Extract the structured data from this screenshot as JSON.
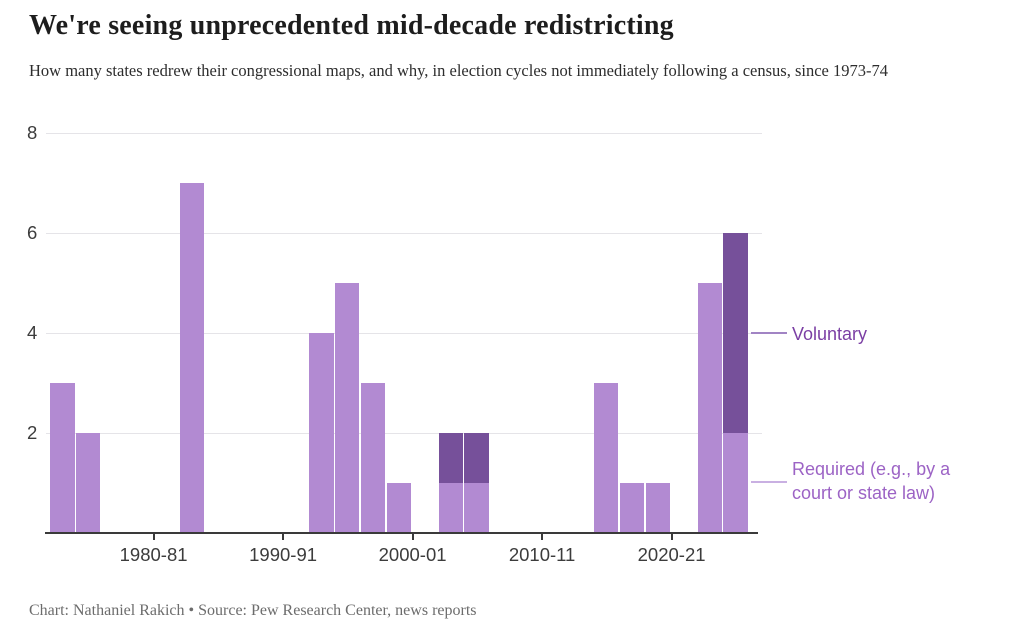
{
  "page": {
    "title": "We're seeing unprecedented mid-decade redistricting",
    "subtitle": "How many states redrew their congressional maps, and why, in election cycles not immediately following a census, since 1973-74",
    "credit": "Chart: Nathaniel Rakich • Source: Pew Research Center, news reports"
  },
  "colors": {
    "required_bar": "#b28ad2",
    "voluntary_bar": "#76509a",
    "voluntary_label_text": "#7b3fa4",
    "required_label_text": "#9c63c5",
    "voluntary_connector": "#a184c4",
    "required_connector": "#c9b0e2",
    "gridline": "#e5e4e8",
    "axis": "#3a3a3a",
    "axis_text": "#3c3c3c"
  },
  "chart_data": {
    "type": "bar",
    "stacked": true,
    "title": "We're seeing unprecedented mid-decade redistricting",
    "subtitle": "How many states redrew their congressional maps, and why, in election cycles not immediately following a census, since 1973-74",
    "xlabel": "",
    "ylabel": "",
    "ylim": [
      0,
      8
    ],
    "y_ticks": [
      2,
      4,
      6,
      8
    ],
    "grid": "horizontal",
    "legend_position": "right-annotations",
    "x_ticks": [
      {
        "label": "1980-81",
        "start_year": 1980
      },
      {
        "label": "1990-91",
        "start_year": 1990
      },
      {
        "label": "2000-01",
        "start_year": 2000
      },
      {
        "label": "2010-11",
        "start_year": 2010
      },
      {
        "label": "2020-21",
        "start_year": 2020
      }
    ],
    "series": [
      {
        "name": "Required (e.g., by a court or state law)",
        "color": "#b28ad2"
      },
      {
        "name": "Voluntary",
        "color": "#76509a"
      }
    ],
    "bars": [
      {
        "cycle": "1973-74",
        "start_year": 1973,
        "required": 3,
        "voluntary": 0
      },
      {
        "cycle": "1975-76",
        "start_year": 1975,
        "required": 2,
        "voluntary": 0
      },
      {
        "cycle": "1983-84",
        "start_year": 1983,
        "required": 7,
        "voluntary": 0
      },
      {
        "cycle": "1993-94",
        "start_year": 1993,
        "required": 4,
        "voluntary": 0
      },
      {
        "cycle": "1995-96",
        "start_year": 1995,
        "required": 5,
        "voluntary": 0
      },
      {
        "cycle": "1997-98",
        "start_year": 1997,
        "required": 3,
        "voluntary": 0
      },
      {
        "cycle": "1999-2000",
        "start_year": 1999,
        "required": 1,
        "voluntary": 0
      },
      {
        "cycle": "2003-04",
        "start_year": 2003,
        "required": 1,
        "voluntary": 1
      },
      {
        "cycle": "2005-06",
        "start_year": 2005,
        "required": 1,
        "voluntary": 1
      },
      {
        "cycle": "2015-16",
        "start_year": 2015,
        "required": 3,
        "voluntary": 0
      },
      {
        "cycle": "2017-18",
        "start_year": 2017,
        "required": 1,
        "voluntary": 0
      },
      {
        "cycle": "2019-20",
        "start_year": 2019,
        "required": 1,
        "voluntary": 0
      },
      {
        "cycle": "2023-24",
        "start_year": 2023,
        "required": 5,
        "voluntary": 0
      },
      {
        "cycle": "2025-26",
        "start_year": 2025,
        "required": 2,
        "voluntary": 4
      }
    ]
  }
}
